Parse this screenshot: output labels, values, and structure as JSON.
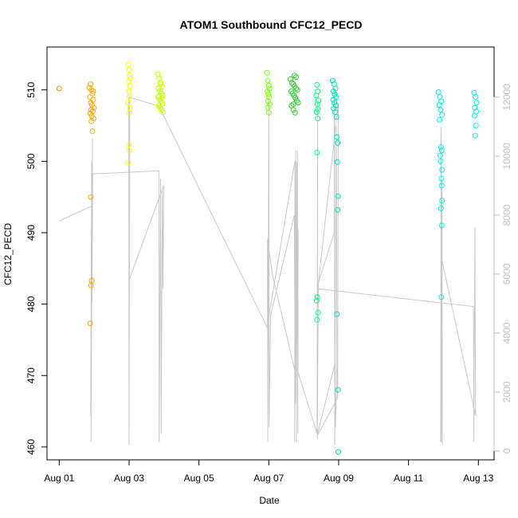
{
  "chart_data": {
    "type": "scatter",
    "title": "ATOM1 Southbound CFC12_PECD",
    "xlabel": "Date",
    "ylabel": "CFC12_PECD",
    "x_units": "days since Aug 01",
    "xlim": [
      -0.35,
      12.45
    ],
    "ylim": [
      458.2,
      516.0
    ],
    "y2lim": [
      -300,
      13700
    ],
    "x_ticks": [
      {
        "value": 0,
        "label": "Aug 01"
      },
      {
        "value": 2,
        "label": "Aug 03"
      },
      {
        "value": 4,
        "label": "Aug 05"
      },
      {
        "value": 6,
        "label": "Aug 07"
      },
      {
        "value": 8,
        "label": "Aug 09"
      },
      {
        "value": 10,
        "label": "Aug 11"
      },
      {
        "value": 12,
        "label": "Aug 13"
      }
    ],
    "y_ticks": [
      {
        "value": 460,
        "label": "460"
      },
      {
        "value": 470,
        "label": "470"
      },
      {
        "value": 480,
        "label": "480"
      },
      {
        "value": 490,
        "label": "490"
      },
      {
        "value": 500,
        "label": "500"
      },
      {
        "value": 510,
        "label": "510"
      }
    ],
    "y2_ticks": [
      {
        "value": 0,
        "label": "0"
      },
      {
        "value": 2000,
        "label": "2000"
      },
      {
        "value": 4000,
        "label": "4000"
      },
      {
        "value": 6000,
        "label": "6000"
      },
      {
        "value": 8000,
        "label": "8000"
      },
      {
        "value": 10000,
        "label": "10000"
      },
      {
        "value": 12000,
        "label": "12000"
      }
    ],
    "colors": {
      "axis": "#000000",
      "axis2": "#bebebe",
      "altitude_line": "#c8c8c8",
      "palette": [
        "#ff8c00",
        "#ffa500",
        "#ffff00",
        "#c8ff00",
        "#7cfc00",
        "#32cd32",
        "#00ff7f",
        "#00e6b0",
        "#00f0e0"
      ]
    },
    "series": [
      {
        "name": "CFC12_PECD",
        "axis": "left",
        "groups": [
          {
            "color_index": 0,
            "points": [
              [
                0.0,
                510.2
              ]
            ]
          },
          {
            "color_index": 1,
            "points": [
              [
                0.9,
                510.8
              ],
              [
                0.92,
                510.0
              ],
              [
                0.95,
                509.5
              ],
              [
                0.88,
                509.0
              ],
              [
                0.97,
                508.6
              ],
              [
                0.9,
                508.2
              ],
              [
                0.94,
                507.9
              ],
              [
                0.99,
                507.5
              ],
              [
                0.91,
                507.2
              ],
              [
                0.96,
                507.0
              ],
              [
                0.89,
                506.7
              ],
              [
                0.93,
                506.3
              ],
              [
                0.98,
                506.0
              ],
              [
                0.92,
                505.6
              ],
              [
                0.95,
                504.2
              ],
              [
                0.9,
                495.0
              ],
              [
                0.93,
                483.3
              ],
              [
                0.91,
                482.6
              ],
              [
                0.89,
                477.3
              ],
              [
                0.97,
                509.8
              ],
              [
                0.86,
                510.3
              ]
            ]
          },
          {
            "color_index": 2,
            "points": [
              [
                1.98,
                513.5
              ],
              [
                2.0,
                512.8
              ],
              [
                2.02,
                512.0
              ],
              [
                1.99,
                511.2
              ],
              [
                2.03,
                510.5
              ],
              [
                2.0,
                509.8
              ],
              [
                2.01,
                509.0
              ],
              [
                1.97,
                508.2
              ],
              [
                2.02,
                507.5
              ],
              [
                2.0,
                506.8
              ],
              [
                1.99,
                502.3
              ],
              [
                2.01,
                501.5
              ],
              [
                1.98,
                499.8
              ],
              [
                2.03,
                511.6
              ]
            ]
          },
          {
            "color_index": 3,
            "points": [
              [
                2.82,
                512.2
              ],
              [
                2.86,
                511.6
              ],
              [
                2.9,
                511.0
              ],
              [
                2.94,
                510.5
              ],
              [
                2.84,
                510.2
              ],
              [
                2.88,
                509.8
              ],
              [
                2.92,
                509.5
              ],
              [
                2.96,
                509.2
              ],
              [
                2.83,
                509.0
              ],
              [
                2.87,
                508.7
              ],
              [
                2.91,
                508.4
              ],
              [
                2.95,
                508.1
              ],
              [
                2.85,
                507.8
              ],
              [
                2.89,
                507.5
              ],
              [
                2.93,
                507.2
              ],
              [
                2.97,
                506.9
              ],
              [
                2.9,
                510.8
              ],
              [
                2.94,
                508.9
              ],
              [
                2.86,
                509.1
              ]
            ]
          },
          {
            "color_index": 4,
            "points": [
              [
                5.95,
                512.4
              ],
              [
                5.97,
                511.3
              ],
              [
                6.0,
                510.6
              ],
              [
                6.02,
                510.2
              ],
              [
                5.96,
                509.8
              ],
              [
                5.99,
                509.4
              ],
              [
                6.01,
                509.0
              ],
              [
                5.98,
                508.4
              ],
              [
                6.03,
                508.0
              ],
              [
                5.97,
                507.5
              ],
              [
                6.0,
                506.8
              ]
            ]
          },
          {
            "color_index": 5,
            "points": [
              [
                6.62,
                511.5
              ],
              [
                6.66,
                511.0
              ],
              [
                6.7,
                510.8
              ],
              [
                6.74,
                510.5
              ],
              [
                6.78,
                510.2
              ],
              [
                6.82,
                510.0
              ],
              [
                6.64,
                509.8
              ],
              [
                6.68,
                509.5
              ],
              [
                6.72,
                509.2
              ],
              [
                6.76,
                508.9
              ],
              [
                6.8,
                508.5
              ],
              [
                6.84,
                508.2
              ],
              [
                6.65,
                507.8
              ],
              [
                6.7,
                507.2
              ],
              [
                6.75,
                506.8
              ],
              [
                6.73,
                512.0
              ],
              [
                6.78,
                511.8
              ],
              [
                6.7,
                508.0
              ]
            ]
          },
          {
            "color_index": 6,
            "points": [
              [
                7.38,
                510.7
              ],
              [
                7.4,
                509.8
              ],
              [
                7.36,
                509.2
              ],
              [
                7.42,
                508.5
              ],
              [
                7.39,
                508.0
              ],
              [
                7.41,
                507.3
              ],
              [
                7.37,
                506.9
              ],
              [
                7.4,
                506.0
              ],
              [
                7.38,
                501.2
              ],
              [
                7.39,
                481.0
              ],
              [
                7.37,
                480.5
              ],
              [
                7.41,
                478.8
              ],
              [
                7.38,
                477.8
              ]
            ]
          },
          {
            "color_index": 7,
            "points": [
              [
                7.83,
                511.3
              ],
              [
                7.87,
                510.8
              ],
              [
                7.91,
                510.2
              ],
              [
                7.85,
                509.8
              ],
              [
                7.89,
                509.4
              ],
              [
                7.93,
                509.0
              ],
              [
                7.84,
                508.6
              ],
              [
                7.88,
                508.2
              ],
              [
                7.92,
                507.8
              ],
              [
                7.86,
                507.4
              ],
              [
                7.9,
                506.9
              ],
              [
                7.94,
                506.2
              ],
              [
                7.95,
                503.4
              ],
              [
                7.97,
                502.6
              ],
              [
                7.96,
                499.9
              ],
              [
                7.98,
                495.1
              ],
              [
                7.97,
                493.2
              ],
              [
                7.95,
                478.6
              ],
              [
                7.98,
                468.0
              ],
              [
                7.99,
                459.3
              ]
            ]
          },
          {
            "color_index": 8,
            "points": [
              [
                10.86,
                509.7
              ],
              [
                10.9,
                509.0
              ],
              [
                10.94,
                508.4
              ],
              [
                10.88,
                507.9
              ],
              [
                10.92,
                507.2
              ],
              [
                10.96,
                506.5
              ],
              [
                10.89,
                505.8
              ],
              [
                10.93,
                502.0
              ],
              [
                10.95,
                501.5
              ],
              [
                10.91,
                500.8
              ],
              [
                10.92,
                500.0
              ],
              [
                10.96,
                498.8
              ],
              [
                10.94,
                497.6
              ],
              [
                10.95,
                496.6
              ],
              [
                10.93,
                493.4
              ],
              [
                10.96,
                494.5
              ],
              [
                10.95,
                491.0
              ],
              [
                10.94,
                481.0
              ],
              [
                11.88,
                509.6
              ],
              [
                11.92,
                509.0
              ],
              [
                11.95,
                508.2
              ],
              [
                11.9,
                507.5
              ],
              [
                11.94,
                507.0
              ],
              [
                11.89,
                506.4
              ],
              [
                11.93,
                505.0
              ],
              [
                11.91,
                503.6
              ]
            ]
          }
        ]
      },
      {
        "name": "altitude",
        "axis": "right",
        "type": "line",
        "points": [
          [
            0.0,
            7800
          ],
          [
            0.92,
            8300
          ],
          [
            0.9,
            1200
          ],
          [
            0.93,
            9800
          ],
          [
            0.91,
            300
          ],
          [
            0.95,
            10600
          ],
          [
            0.94,
            5000
          ],
          [
            0.96,
            9400
          ],
          [
            2.85,
            9500
          ],
          [
            2.86,
            300
          ],
          [
            2.9,
            9200
          ],
          [
            2.92,
            600
          ],
          [
            2.95,
            8800
          ],
          [
            2.97,
            5500
          ],
          [
            2.99,
            9000
          ],
          [
            2.0,
            5800
          ],
          [
            1.99,
            12000
          ],
          [
            2.0,
            200
          ],
          [
            2.02,
            11800
          ],
          [
            2.01,
            9600
          ],
          [
            2.0,
            12000
          ],
          [
            2.85,
            11700
          ],
          [
            5.95,
            4200
          ],
          [
            6.75,
            9850
          ],
          [
            6.74,
            300
          ],
          [
            6.77,
            10200
          ],
          [
            6.76,
            1600
          ],
          [
            6.8,
            9800
          ],
          [
            6.79,
            300
          ],
          [
            6.82,
            10200
          ],
          [
            6.83,
            600
          ],
          [
            6.84,
            7500
          ],
          [
            6.79,
            2500
          ],
          [
            6.1,
            6000
          ],
          [
            5.96,
            7200
          ],
          [
            5.97,
            300
          ],
          [
            6.0,
            12000
          ],
          [
            6.01,
            800
          ],
          [
            6.05,
            4600
          ],
          [
            6.73,
            8000
          ],
          [
            6.75,
            3000
          ],
          [
            7.38,
            600
          ],
          [
            7.4,
            11800
          ],
          [
            7.39,
            400
          ],
          [
            7.42,
            5700
          ],
          [
            7.87,
            7400
          ],
          [
            7.88,
            12300
          ],
          [
            7.89,
            200
          ],
          [
            7.93,
            11000
          ],
          [
            7.95,
            2500
          ],
          [
            7.91,
            800
          ],
          [
            7.9,
            3000
          ],
          [
            7.38,
            500
          ],
          [
            7.97,
            1800
          ],
          [
            7.99,
            11800
          ],
          [
            7.4,
            5500
          ],
          [
            11.86,
            4900
          ],
          [
            11.87,
            300
          ],
          [
            11.9,
            7600
          ],
          [
            11.92,
            1200
          ],
          [
            10.95,
            6500
          ],
          [
            10.93,
            11000
          ],
          [
            10.94,
            300
          ],
          [
            10.96,
            9200
          ],
          [
            10.97,
            200
          ],
          [
            10.95,
            8600
          ],
          [
            10.92,
            300
          ],
          [
            10.93,
            8500
          ]
        ]
      }
    ]
  }
}
